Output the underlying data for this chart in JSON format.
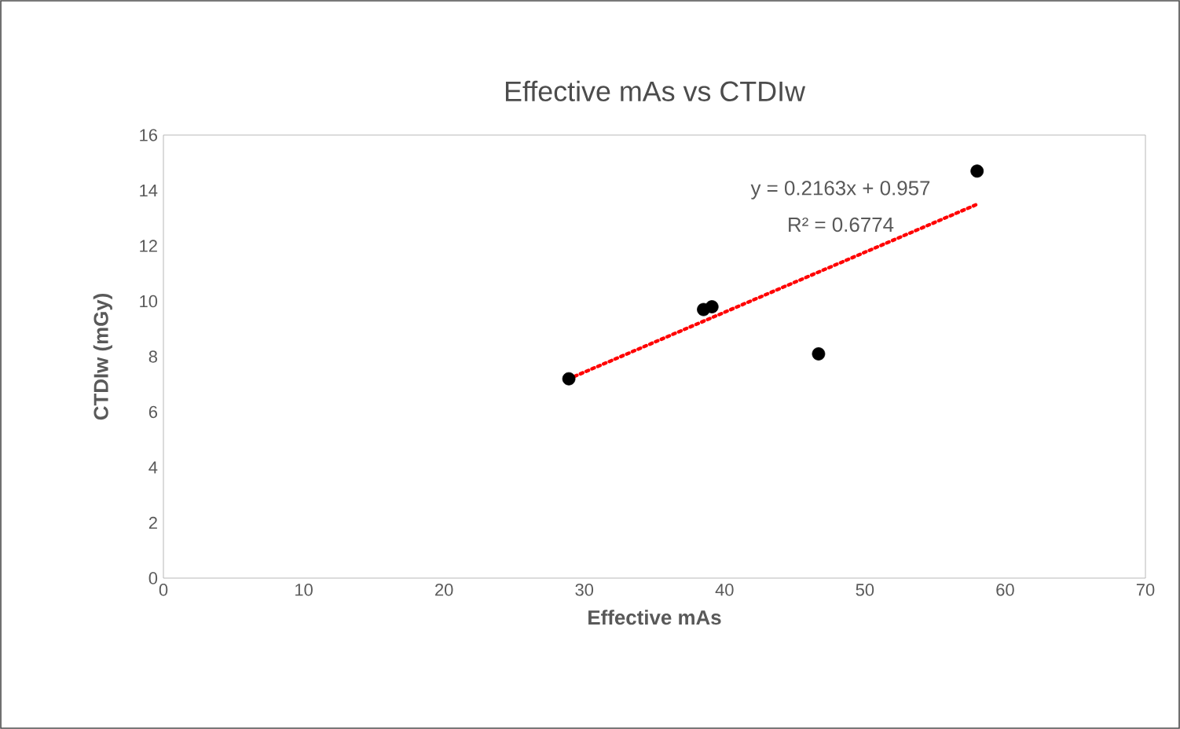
{
  "chart_data": {
    "type": "scatter",
    "title": "Effective mAs vs CTDIw",
    "xlabel": "Effective mAs",
    "ylabel": "CTDIw (mGy)",
    "series": [
      {
        "color": "#000000",
        "marker": "circle",
        "x": [
          28.9,
          38.5,
          39.1,
          46.7,
          58.0
        ],
        "values": [
          7.2,
          9.7,
          9.8,
          8.1,
          14.7
        ]
      },
      {
        "type": "line",
        "color": "#ff0000",
        "line_style": "dotted",
        "marker": "none",
        "x": [
          28.9,
          58.0
        ],
        "values": [
          7.2,
          13.5
        ]
      }
    ],
    "annotations": [
      "y = 0.2163x + 0.957",
      "R² = 0.6774"
    ],
    "xlim": [
      0,
      70
    ],
    "xticks": [
      0,
      10,
      20,
      30,
      40,
      50,
      60,
      70
    ],
    "ylim": [
      0,
      16
    ],
    "yticks": [
      0,
      2,
      4,
      6,
      8,
      10,
      12,
      14,
      16
    ]
  }
}
